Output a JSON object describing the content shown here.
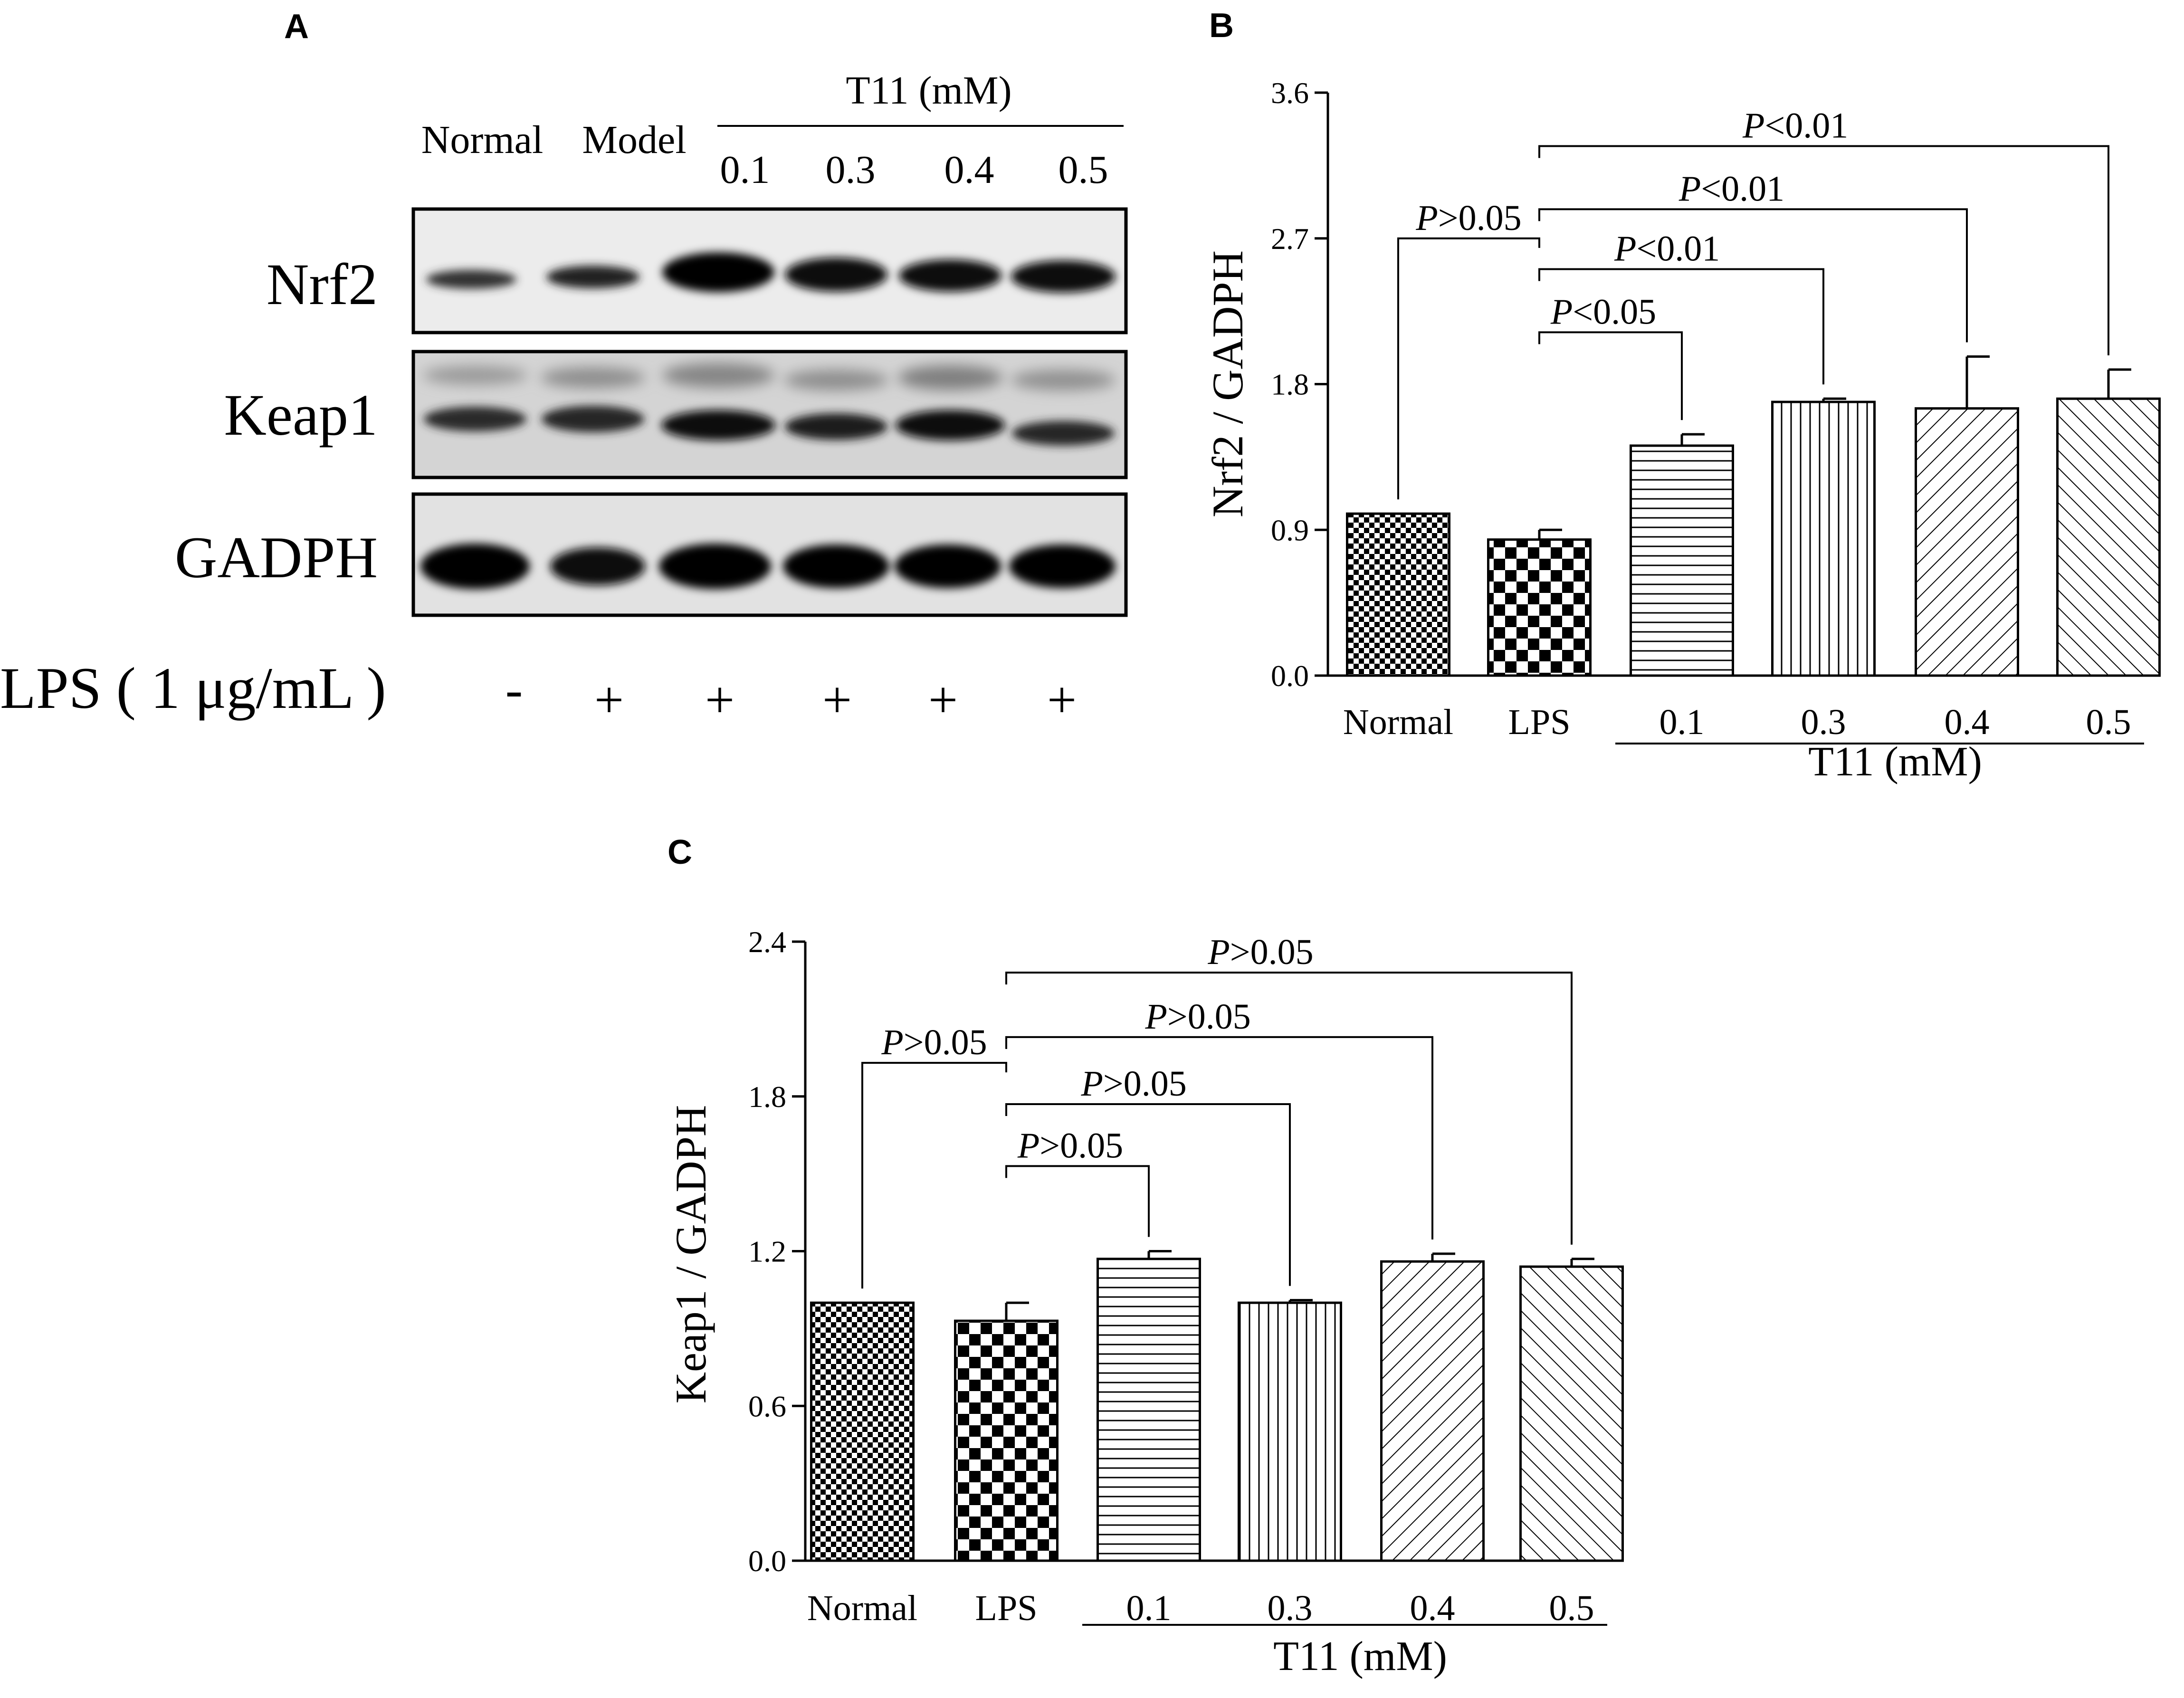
{
  "panels": [
    {
      "letter": "A"
    },
    {
      "letter": "B"
    },
    {
      "letter": "C"
    }
  ],
  "blot": {
    "lane_labels": [
      "Normal",
      "Model"
    ],
    "t11_label": "T11 (mM)",
    "t11_doses": [
      "0.1",
      "0.3",
      "0.4",
      "0.5"
    ],
    "proteins": [
      "Nrf2",
      "Keap1",
      "GADPH"
    ],
    "lps_label": "LPS ( 1 μg/mL )",
    "lps_signs": [
      "-",
      "+",
      "+",
      "+",
      "+",
      "+"
    ]
  },
  "chart_data": [
    {
      "panel": "B",
      "type": "bar",
      "title": "",
      "xlabel": "T11 (mM)",
      "ylabel": "Nrf2 / GADPH",
      "categories": [
        "Normal",
        "LPS",
        "0.1",
        "0.3",
        "0.4",
        "0.5"
      ],
      "values": [
        1.0,
        0.84,
        1.42,
        1.69,
        1.65,
        1.71
      ],
      "errors": [
        0.0,
        0.06,
        0.07,
        0.02,
        0.32,
        0.18
      ],
      "ylim": [
        0,
        3.6
      ],
      "yticks": [
        "0.0",
        "0.9",
        "1.8",
        "2.7",
        "3.6"
      ],
      "patterns": [
        "checker-fine",
        "checker-coarse",
        "horizontal",
        "vertical",
        "diag-right",
        "diag-left"
      ],
      "grid": false,
      "annotations": [
        {
          "from": "Normal",
          "to": "LPS",
          "text": "P>0.05",
          "level": 2.7
        },
        {
          "from": "LPS",
          "to": "0.1",
          "text": "P<0.05",
          "level": 2.12
        },
        {
          "from": "LPS",
          "to": "0.3",
          "text": "P<0.01",
          "level": 2.51
        },
        {
          "from": "LPS",
          "to": "0.4",
          "text": "P<0.01",
          "level": 2.88
        },
        {
          "from": "LPS",
          "to": "0.5",
          "text": "P<0.01",
          "level": 3.27
        }
      ]
    },
    {
      "panel": "C",
      "type": "bar",
      "title": "",
      "xlabel": "T11 (mM)",
      "ylabel": "Keap1 / GADPH",
      "categories": [
        "Normal",
        "LPS",
        "0.1",
        "0.3",
        "0.4",
        "0.5"
      ],
      "values": [
        1.0,
        0.93,
        1.17,
        1.0,
        1.16,
        1.14
      ],
      "errors": [
        0.0,
        0.07,
        0.03,
        0.01,
        0.03,
        0.03
      ],
      "ylim": [
        0,
        2.4
      ],
      "yticks": [
        "0.0",
        "0.6",
        "1.2",
        "1.8",
        "2.4"
      ],
      "patterns": [
        "checker-fine",
        "checker-coarse",
        "horizontal",
        "vertical",
        "diag-right",
        "diag-left"
      ],
      "grid": false,
      "annotations": [
        {
          "from": "Normal",
          "to": "LPS",
          "text": "P>0.05",
          "level": 1.93
        },
        {
          "from": "LPS",
          "to": "0.1",
          "text": "P>0.05",
          "level": 1.53
        },
        {
          "from": "LPS",
          "to": "0.3",
          "text": "P>0.05",
          "level": 1.77
        },
        {
          "from": "LPS",
          "to": "0.4",
          "text": "P>0.05",
          "level": 2.03
        },
        {
          "from": "LPS",
          "to": "0.5",
          "text": "P>0.05",
          "level": 2.28
        }
      ]
    }
  ]
}
